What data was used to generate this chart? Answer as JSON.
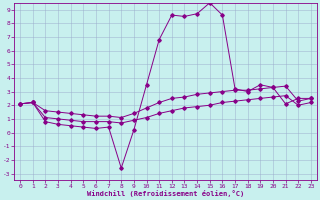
{
  "xlabel": "Windchill (Refroidissement éolien,°C)",
  "background_color": "#c8f0ee",
  "line_color": "#880088",
  "grid_color": "#99aacc",
  "xlim": [
    -0.5,
    23.5
  ],
  "ylim": [
    -3.5,
    9.5
  ],
  "xticks": [
    0,
    1,
    2,
    3,
    4,
    5,
    6,
    7,
    8,
    9,
    10,
    11,
    12,
    13,
    14,
    15,
    16,
    17,
    18,
    19,
    20,
    21,
    22,
    23
  ],
  "yticks": [
    -3,
    -2,
    -1,
    0,
    1,
    2,
    3,
    4,
    5,
    6,
    7,
    8,
    9
  ],
  "line1_x": [
    0,
    1,
    2,
    3,
    4,
    5,
    6,
    7,
    8,
    9,
    10,
    11,
    12,
    13,
    14,
    15,
    16,
    17,
    18,
    19,
    20,
    21,
    22,
    23
  ],
  "line1_y": [
    2.1,
    2.2,
    0.8,
    0.6,
    0.5,
    0.4,
    0.3,
    0.4,
    -2.6,
    0.2,
    3.5,
    6.8,
    8.6,
    8.5,
    8.7,
    9.5,
    8.6,
    3.2,
    3.0,
    3.5,
    3.3,
    2.1,
    2.5,
    2.5
  ],
  "line2_x": [
    0,
    1,
    2,
    3,
    4,
    5,
    6,
    7,
    8,
    9,
    10,
    11,
    12,
    13,
    14,
    15,
    16,
    17,
    18,
    19,
    20,
    21,
    22,
    23
  ],
  "line2_y": [
    2.1,
    2.2,
    1.6,
    1.5,
    1.4,
    1.3,
    1.2,
    1.2,
    1.1,
    1.4,
    1.8,
    2.2,
    2.5,
    2.6,
    2.8,
    2.9,
    3.0,
    3.1,
    3.1,
    3.2,
    3.3,
    3.4,
    2.3,
    2.5
  ],
  "line3_x": [
    0,
    1,
    2,
    3,
    4,
    5,
    6,
    7,
    8,
    9,
    10,
    11,
    12,
    13,
    14,
    15,
    16,
    17,
    18,
    19,
    20,
    21,
    22,
    23
  ],
  "line3_y": [
    2.1,
    2.2,
    1.1,
    1.0,
    0.9,
    0.8,
    0.8,
    0.8,
    0.7,
    0.9,
    1.1,
    1.4,
    1.6,
    1.8,
    1.9,
    2.0,
    2.2,
    2.3,
    2.4,
    2.5,
    2.6,
    2.7,
    2.0,
    2.2
  ]
}
